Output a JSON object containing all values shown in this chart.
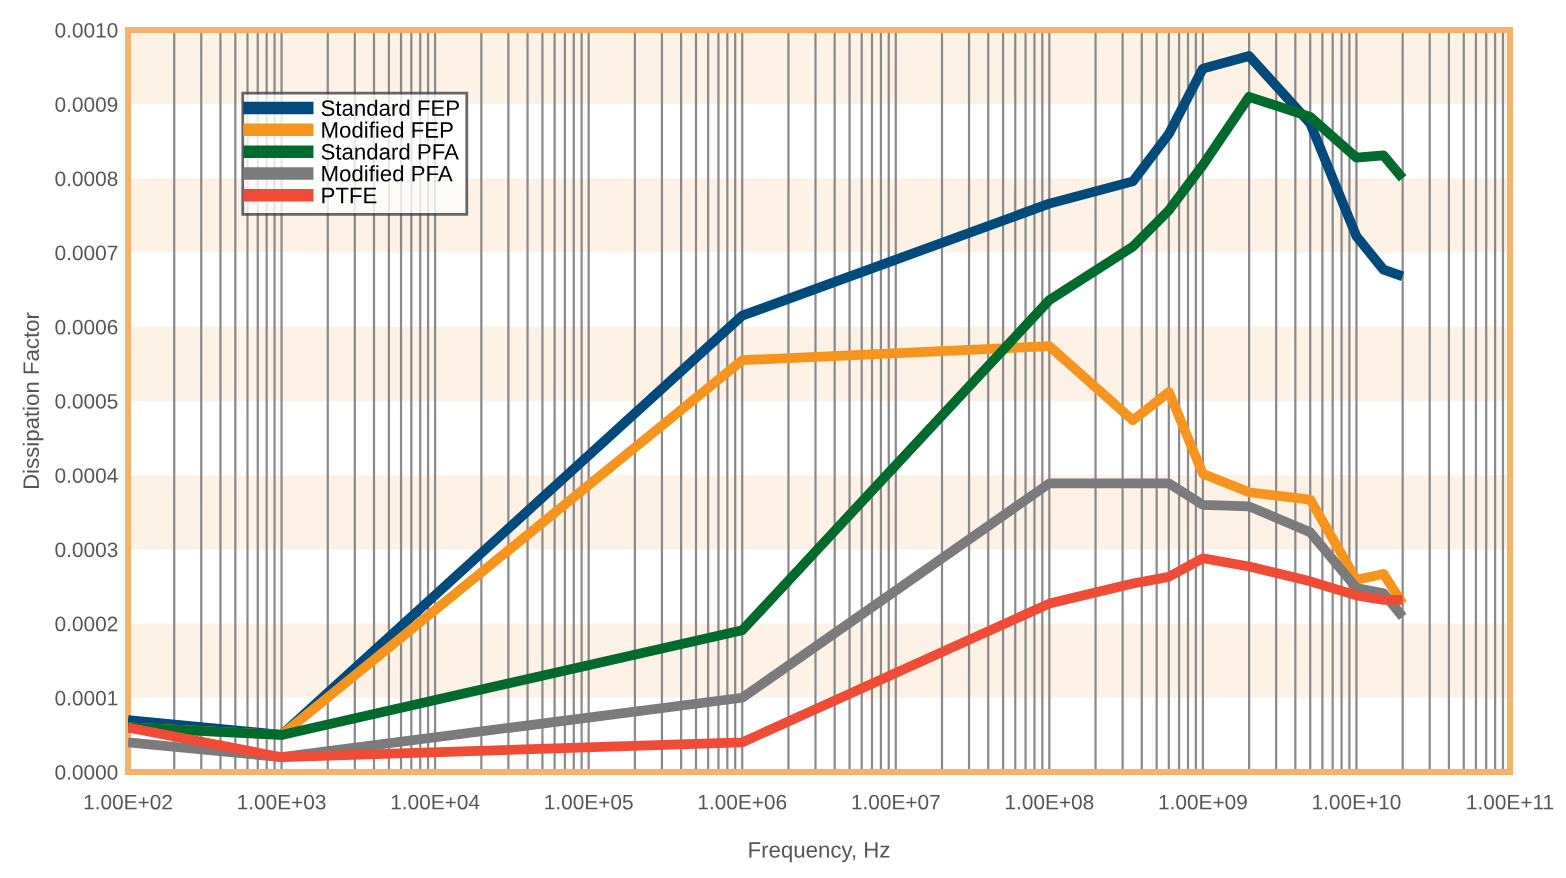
{
  "chart_data": {
    "type": "line",
    "xlabel": "Frequency, Hz",
    "ylabel": "Dissipation Factor",
    "x": [
      100,
      1000,
      1000000,
      100000000,
      350000000,
      600000000,
      1000000000,
      2000000000,
      5000000000,
      10000000000,
      15000000000,
      20000000000
    ],
    "series": [
      {
        "name": "Standard FEP",
        "color": "#004b7c",
        "values": [
          7e-05,
          5e-05,
          0.000615,
          0.000766,
          0.000796,
          0.00086,
          0.000948,
          0.000965,
          0.000874,
          0.000722,
          0.000677,
          0.000668
        ]
      },
      {
        "name": "Modified FEP",
        "color": "#f7941d",
        "values": [
          6e-05,
          5e-05,
          0.000555,
          0.000574,
          0.000474,
          0.000512,
          0.000402,
          0.000377,
          0.000367,
          0.000259,
          0.000267,
          0.000227
        ]
      },
      {
        "name": "Standard PFA",
        "color": "#006b2d",
        "values": [
          6e-05,
          5e-05,
          0.000191,
          0.000636,
          0.000708,
          0.000757,
          0.000818,
          0.00091,
          0.000883,
          0.000828,
          0.000831,
          0.0008
        ]
      },
      {
        "name": "Modified PFA",
        "color": "#7b7b7d",
        "values": [
          4e-05,
          2e-05,
          0.0001,
          0.000389,
          0.000389,
          0.000389,
          0.00036,
          0.000358,
          0.000323,
          0.000248,
          0.000241,
          0.000209
        ]
      },
      {
        "name": "PTFE",
        "color": "#ef4b36",
        "values": [
          6e-05,
          2e-05,
          4e-05,
          0.000227,
          0.000254,
          0.000263,
          0.000288,
          0.000277,
          0.000257,
          0.000238,
          0.000232,
          0.000232
        ]
      }
    ],
    "log": "x",
    "xlim": [
      100,
      100000000000
    ],
    "xticks": [
      {
        "value": 100,
        "label": "1.00E+02"
      },
      {
        "value": 1000,
        "label": "1.00E+03"
      },
      {
        "value": 10000,
        "label": "1.00E+04"
      },
      {
        "value": 100000,
        "label": "1.00E+05"
      },
      {
        "value": 1000000,
        "label": "1.00E+06"
      },
      {
        "value": 10000000,
        "label": "1.00E+07"
      },
      {
        "value": 100000000,
        "label": "1.00E+08"
      },
      {
        "value": 1000000000,
        "label": "1.00E+09"
      },
      {
        "value": 10000000000,
        "label": "1.00E+10"
      },
      {
        "value": 100000000000,
        "label": "1.00E+11"
      }
    ],
    "ylim": [
      0,
      0.001
    ],
    "yticks": [
      {
        "value": 0,
        "label": "0.0000"
      },
      {
        "value": 0.0001,
        "label": "0.0001"
      },
      {
        "value": 0.0002,
        "label": "0.0002"
      },
      {
        "value": 0.0003,
        "label": "0.0003"
      },
      {
        "value": 0.0004,
        "label": "0.0004"
      },
      {
        "value": 0.0005,
        "label": "0.0005"
      },
      {
        "value": 0.0006,
        "label": "0.0006"
      },
      {
        "value": 0.0007,
        "label": "0.0007"
      },
      {
        "value": 0.0008,
        "label": "0.0008"
      },
      {
        "value": 0.0009,
        "label": "0.0009"
      },
      {
        "value": 0.001,
        "label": "0.0010"
      }
    ],
    "bands": [
      {
        "axis": "y",
        "from": 0.0001,
        "to": 0.0002,
        "color": "#fdf2e5"
      },
      {
        "axis": "y",
        "from": 0.0003,
        "to": 0.0004,
        "color": "#fdf2e5"
      },
      {
        "axis": "y",
        "from": 0.0005,
        "to": 0.0006,
        "color": "#fdf2e5"
      },
      {
        "axis": "y",
        "from": 0.0007,
        "to": 0.0008,
        "color": "#fdf2e5"
      },
      {
        "axis": "y",
        "from": 0.0009,
        "to": 0.001,
        "color": "#fdf2e5"
      }
    ],
    "grid": "x",
    "legend": "top left",
    "marker": "none",
    "line_style": "solid"
  }
}
